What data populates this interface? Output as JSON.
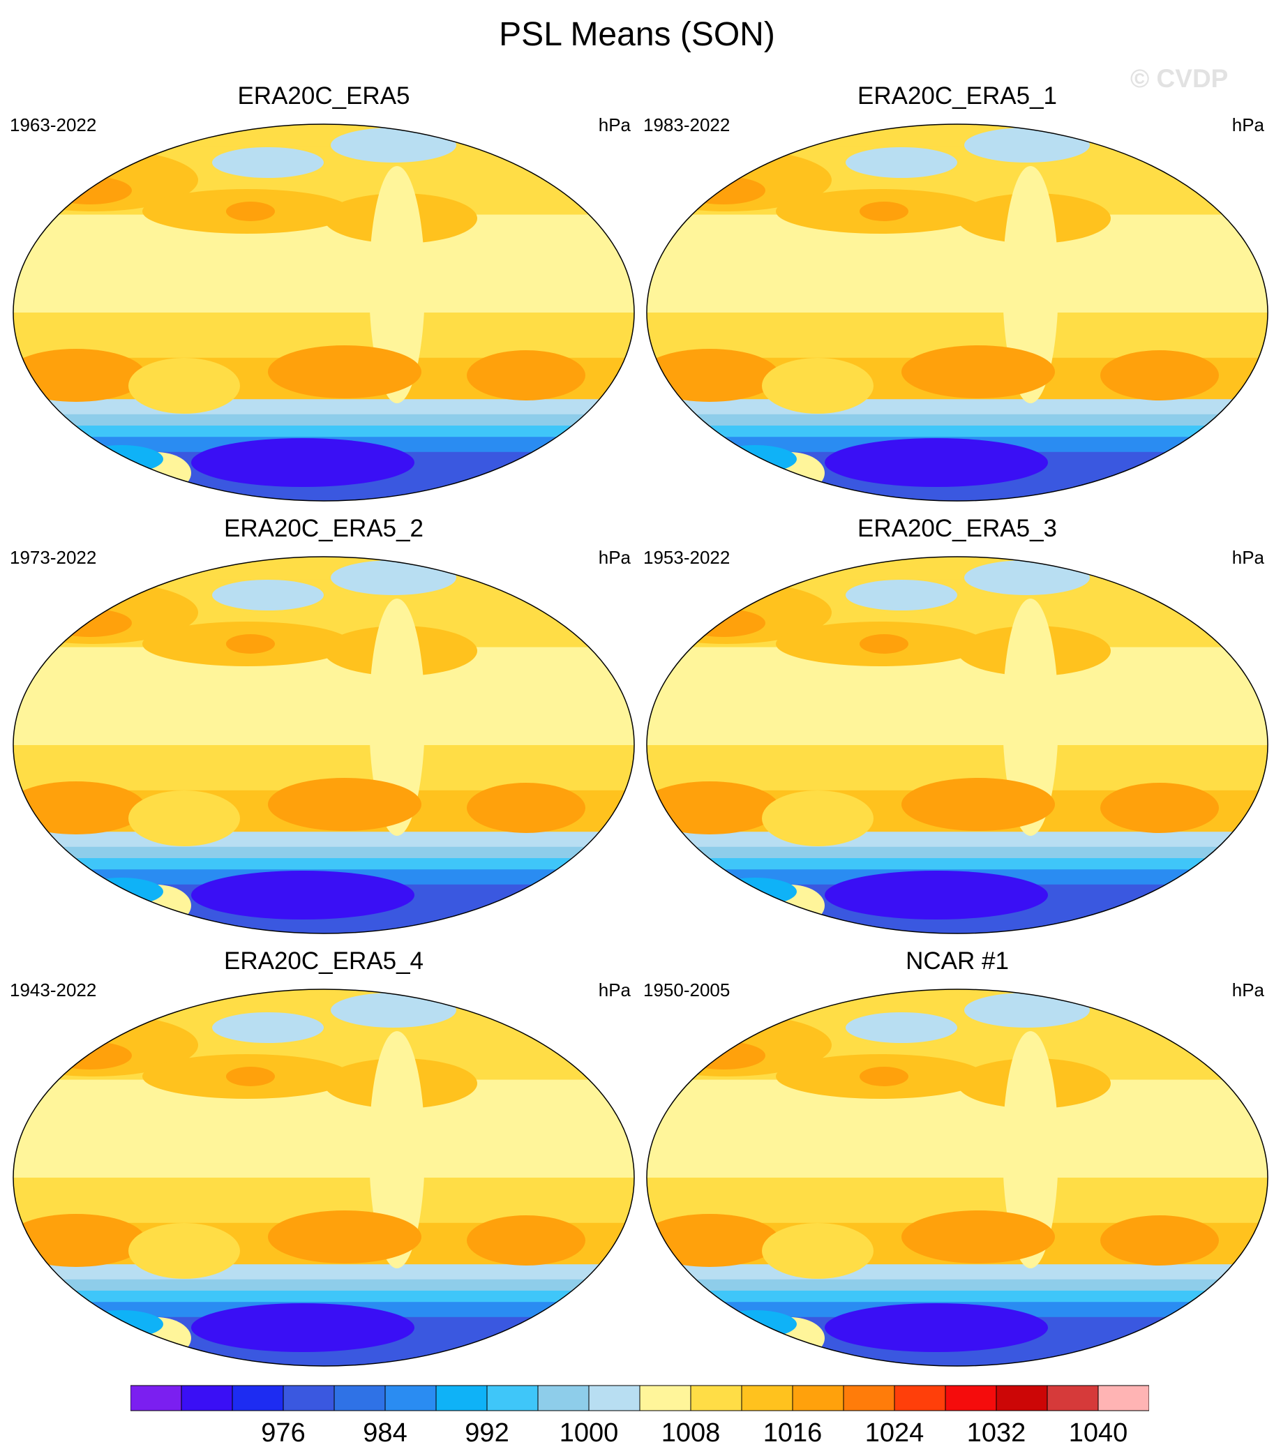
{
  "title": "PSL Means (SON)",
  "watermark": "© CVDP",
  "unit": "hPa",
  "panels": [
    {
      "name": "ERA20C_ERA5",
      "years": "1963-2022"
    },
    {
      "name": "ERA20C_ERA5_1",
      "years": "1983-2022"
    },
    {
      "name": "ERA20C_ERA5_2",
      "years": "1973-2022"
    },
    {
      "name": "ERA20C_ERA5_3",
      "years": "1953-2022"
    },
    {
      "name": "ERA20C_ERA5_4",
      "years": "1943-2022"
    },
    {
      "name": "NCAR #1",
      "years": "1950-2005"
    }
  ],
  "chart_data": {
    "type": "heatmap",
    "title": "PSL Means (SON)",
    "units": "hPa",
    "colorbar": {
      "levels": [
        968,
        972,
        976,
        980,
        984,
        988,
        992,
        996,
        1000,
        1004,
        1008,
        1012,
        1016,
        1020,
        1024,
        1028,
        1032,
        1036,
        1040,
        1044
      ],
      "tick_labels": [
        "976",
        "984",
        "992",
        "1000",
        "1008",
        "1016",
        "1024",
        "1032",
        "1040"
      ],
      "tick_values": [
        976,
        984,
        992,
        1000,
        1008,
        1016,
        1024,
        1032,
        1040
      ],
      "colors": [
        "#7b1ff0",
        "#3a0ff5",
        "#1d2cf2",
        "#3a58e0",
        "#2f72e6",
        "#2a8cf2",
        "#0fb2f7",
        "#3fc6f9",
        "#8ecdea",
        "#b8def2",
        "#fff59a",
        "#ffdd46",
        "#ffc21e",
        "#ffa10c",
        "#ff7c0a",
        "#ff3f0a",
        "#f50c0c",
        "#cc0606",
        "#d63a3a",
        "#ffb4b4"
      ]
    }
  }
}
